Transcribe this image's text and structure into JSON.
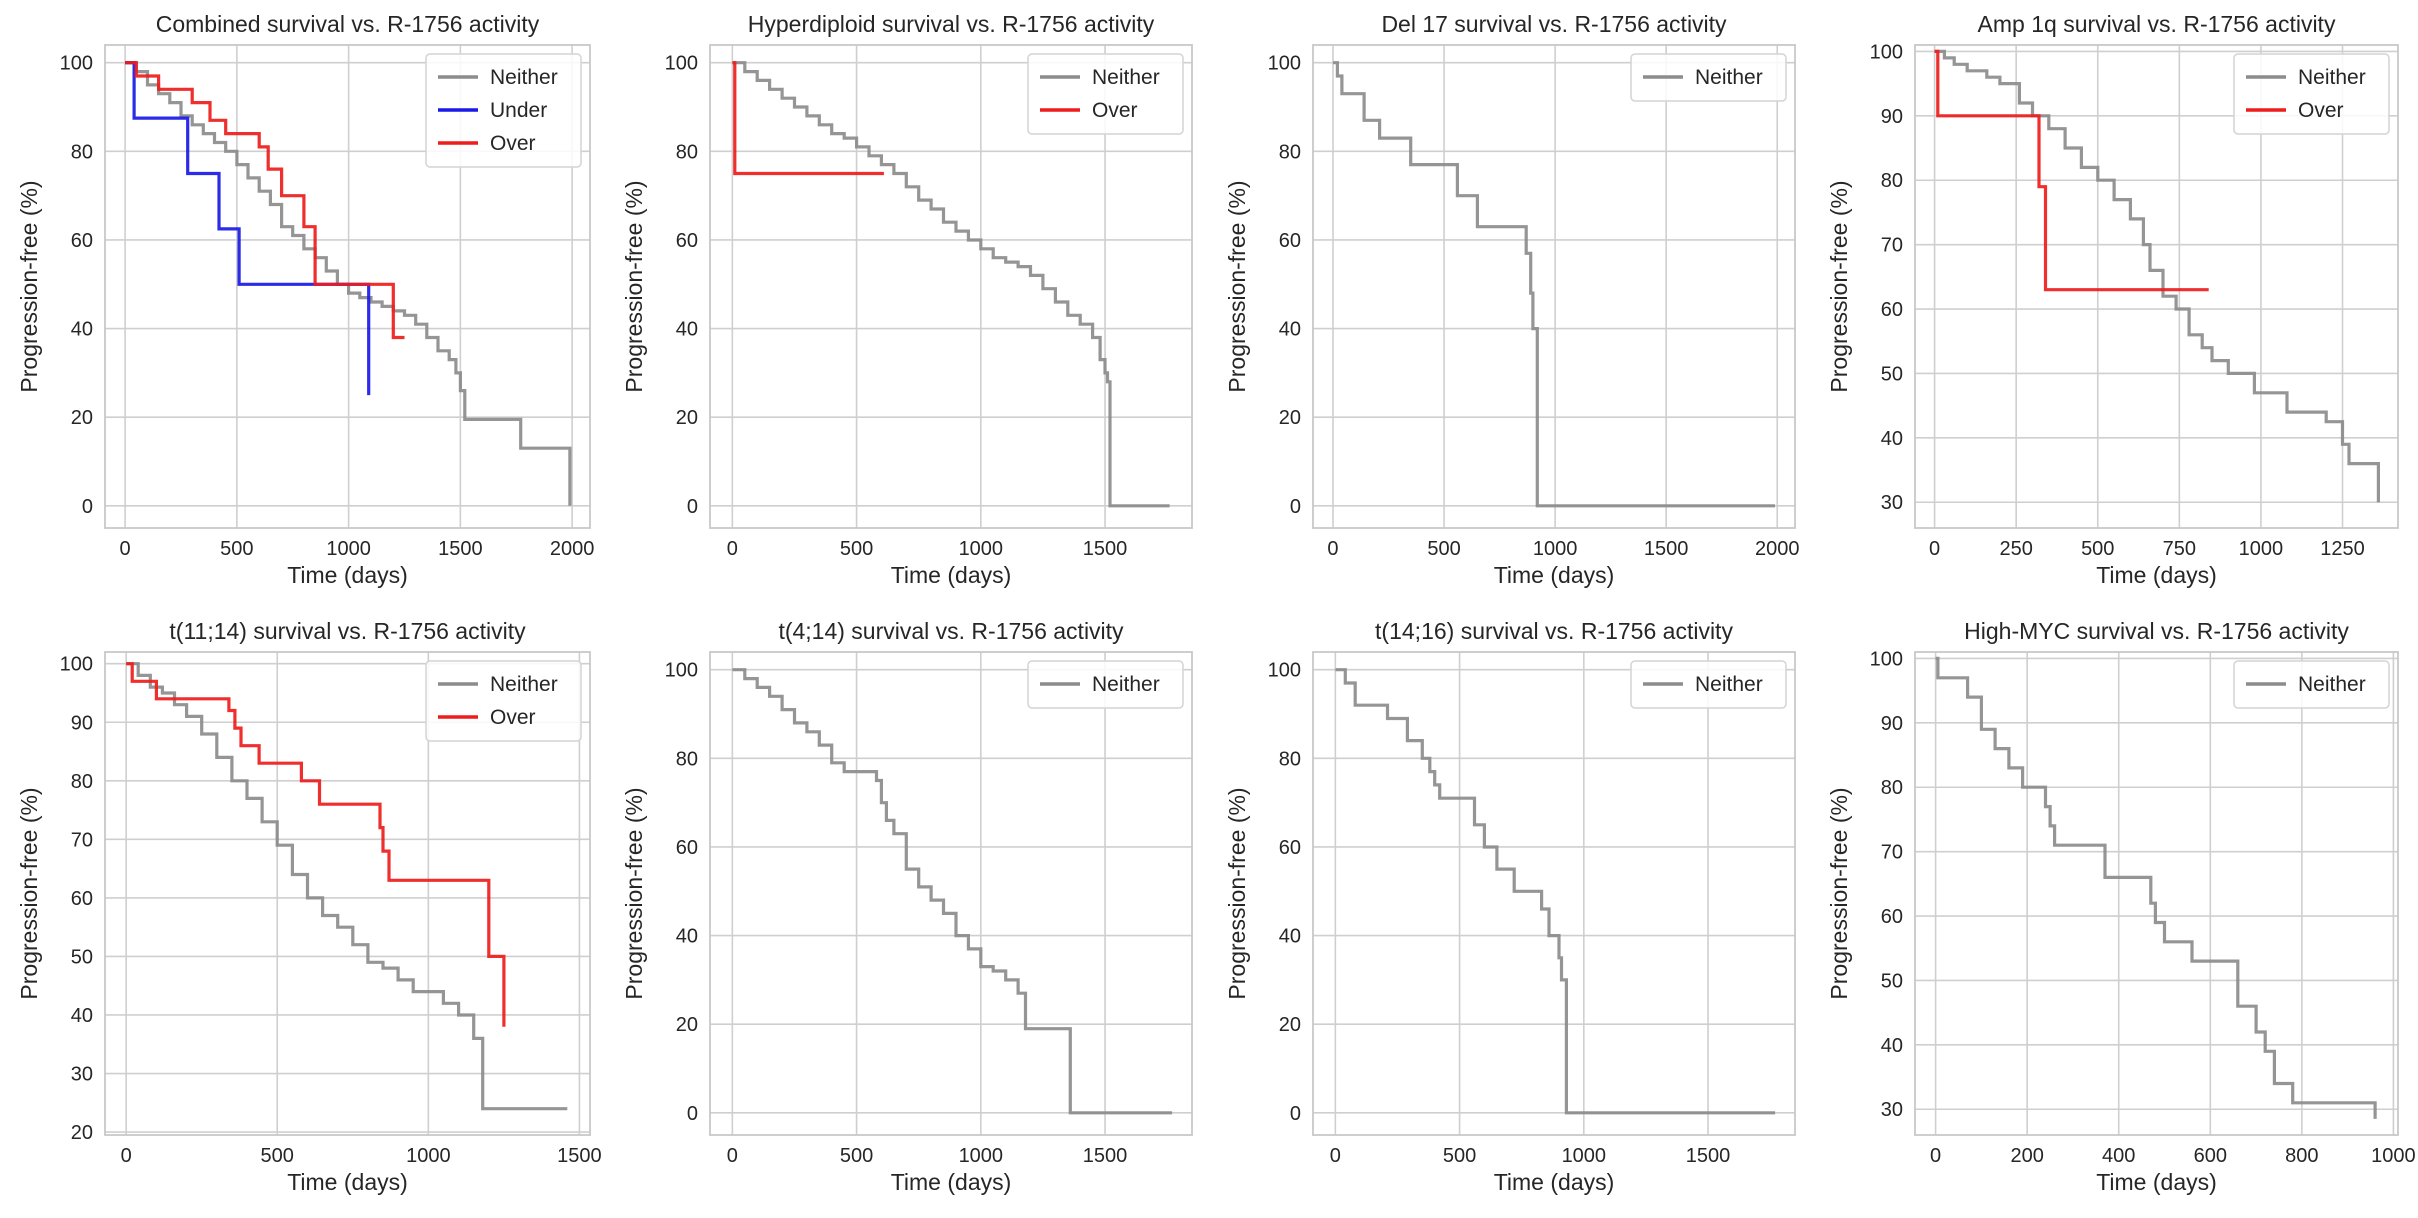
{
  "colors": {
    "neither": "#8c8c8c",
    "under": "#1a1ae6",
    "over": "#ee1c1c",
    "grid": "#cfcfcf",
    "frame": "#c8c8c8"
  },
  "chart_data": [
    {
      "type": "line",
      "title": "Combined survival vs. R-1756 activity",
      "xlabel": "Time (days)",
      "ylabel": "Progression-free (%)",
      "xlim": [
        -90,
        2080
      ],
      "ylim": [
        -5,
        104
      ],
      "xticks": [
        0,
        500,
        1000,
        1500,
        2000
      ],
      "yticks": [
        0,
        20,
        40,
        60,
        80,
        100
      ],
      "series": [
        {
          "name": "Neither",
          "color": "#8c8c8c",
          "x": [
            0,
            50,
            100,
            150,
            200,
            250,
            300,
            350,
            400,
            450,
            500,
            550,
            600,
            650,
            700,
            750,
            800,
            850,
            900,
            950,
            1000,
            1050,
            1100,
            1150,
            1200,
            1250,
            1300,
            1350,
            1400,
            1450,
            1480,
            1500,
            1510,
            1520,
            1760,
            1770,
            1990
          ],
          "y": [
            100,
            98,
            95,
            93,
            91,
            88,
            86,
            84,
            82,
            80,
            77,
            74,
            71,
            68,
            63,
            61,
            58,
            56,
            53,
            50,
            48,
            47,
            46,
            45,
            44,
            43,
            41,
            38,
            35,
            33,
            30,
            26,
            26,
            19.5,
            19.5,
            13,
            0
          ]
        },
        {
          "name": "Under",
          "color": "#1a1ae6",
          "x": [
            0,
            40,
            280,
            420,
            510,
            1090
          ],
          "y": [
            100,
            87.5,
            75,
            62.5,
            50,
            25
          ]
        },
        {
          "name": "Over",
          "color": "#ee1c1c",
          "x": [
            0,
            50,
            150,
            300,
            380,
            450,
            600,
            640,
            700,
            800,
            850,
            1200,
            1250
          ],
          "y": [
            100,
            97,
            94,
            91,
            87,
            84,
            81,
            76,
            70,
            63,
            50,
            38,
            38
          ]
        }
      ]
    },
    {
      "type": "line",
      "title": "Hyperdiploid survival vs. R-1756 activity",
      "xlabel": "Time (days)",
      "ylabel": "Progression-free (%)",
      "xlim": [
        -90,
        1850
      ],
      "ylim": [
        -5,
        104
      ],
      "xticks": [
        0,
        500,
        1000,
        1500
      ],
      "yticks": [
        0,
        20,
        40,
        60,
        80,
        100
      ],
      "series": [
        {
          "name": "Neither",
          "color": "#8c8c8c",
          "x": [
            0,
            50,
            100,
            150,
            200,
            250,
            300,
            350,
            400,
            450,
            500,
            550,
            600,
            650,
            700,
            750,
            800,
            850,
            900,
            950,
            1000,
            1050,
            1100,
            1150,
            1200,
            1250,
            1300,
            1350,
            1400,
            1450,
            1480,
            1500,
            1510,
            1520,
            1760
          ],
          "y": [
            100,
            98,
            96,
            94,
            92,
            90,
            88,
            86,
            84,
            83,
            81,
            79,
            77,
            75,
            72,
            69,
            67,
            64,
            62,
            60,
            58,
            56,
            55,
            54,
            52,
            49,
            46,
            43,
            41,
            38,
            33,
            30,
            28,
            0,
            0
          ]
        },
        {
          "name": "Over",
          "color": "#ee1c1c",
          "x": [
            0,
            10,
            610
          ],
          "y": [
            100,
            75,
            75
          ]
        }
      ]
    },
    {
      "type": "line",
      "title": "Del 17 survival vs. R-1756 activity",
      "xlabel": "Time (days)",
      "ylabel": "Progression-free (%)",
      "xlim": [
        -90,
        2080
      ],
      "ylim": [
        -5,
        104
      ],
      "xticks": [
        0,
        500,
        1000,
        1500,
        2000
      ],
      "yticks": [
        0,
        20,
        40,
        60,
        80,
        100
      ],
      "series": [
        {
          "name": "Neither",
          "color": "#8c8c8c",
          "x": [
            0,
            20,
            40,
            140,
            210,
            350,
            560,
            650,
            870,
            890,
            900,
            920,
            1990
          ],
          "y": [
            100,
            97,
            93,
            87,
            83,
            77,
            70,
            63,
            57,
            48,
            40,
            0,
            0
          ]
        }
      ]
    },
    {
      "type": "line",
      "title": "Amp 1q survival vs. R-1756 activity",
      "xlabel": "Time (days)",
      "ylabel": "Progression-free (%)",
      "xlim": [
        -60,
        1420
      ],
      "ylim": [
        26,
        101
      ],
      "xticks": [
        0,
        250,
        500,
        750,
        1000,
        1250
      ],
      "yticks": [
        30,
        40,
        50,
        60,
        70,
        80,
        90,
        100
      ],
      "series": [
        {
          "name": "Neither",
          "color": "#8c8c8c",
          "x": [
            0,
            30,
            60,
            100,
            160,
            200,
            260,
            300,
            350,
            400,
            450,
            500,
            550,
            600,
            640,
            660,
            700,
            740,
            780,
            820,
            850,
            900,
            980,
            1080,
            1200,
            1250,
            1270,
            1360
          ],
          "y": [
            100,
            99,
            98,
            97,
            96,
            95,
            92,
            90,
            88,
            85,
            82,
            80,
            77,
            74,
            70,
            66,
            62,
            60,
            56,
            54,
            52,
            50,
            47,
            44,
            42.5,
            39,
            36,
            30
          ]
        },
        {
          "name": "Over",
          "color": "#ee1c1c",
          "x": [
            0,
            10,
            320,
            340,
            840
          ],
          "y": [
            100,
            90,
            79,
            63,
            63
          ]
        }
      ]
    },
    {
      "type": "line",
      "title": "t(11;14) survival vs. R-1756 activity",
      "xlabel": "Time (days)",
      "ylabel": "Progression-free (%)",
      "xlim": [
        -70,
        1535
      ],
      "ylim": [
        19.5,
        102
      ],
      "xticks": [
        0,
        500,
        1000,
        1500
      ],
      "yticks": [
        20,
        30,
        40,
        50,
        60,
        70,
        80,
        90,
        100
      ],
      "series": [
        {
          "name": "Neither",
          "color": "#8c8c8c",
          "x": [
            0,
            40,
            80,
            120,
            160,
            200,
            250,
            300,
            350,
            400,
            450,
            500,
            550,
            600,
            650,
            700,
            750,
            800,
            850,
            900,
            950,
            1000,
            1050,
            1100,
            1150,
            1180,
            1220,
            1460
          ],
          "y": [
            100,
            98,
            96,
            95,
            93,
            91,
            88,
            84,
            80,
            77,
            73,
            69,
            64,
            60,
            57,
            55,
            52,
            49,
            48,
            46,
            44,
            44,
            42,
            40,
            36,
            24,
            24,
            24
          ]
        },
        {
          "name": "Over",
          "color": "#ee1c1c",
          "x": [
            0,
            20,
            100,
            340,
            360,
            380,
            440,
            580,
            640,
            840,
            850,
            870,
            1200,
            1250
          ],
          "y": [
            100,
            97,
            94,
            92,
            89,
            86,
            83,
            80,
            76,
            72,
            68,
            63,
            50,
            38
          ]
        }
      ]
    },
    {
      "type": "line",
      "title": "t(4;14) survival vs. R-1756 activity",
      "xlabel": "Time (days)",
      "ylabel": "Progression-free (%)",
      "xlim": [
        -90,
        1850
      ],
      "ylim": [
        -5,
        104
      ],
      "xticks": [
        0,
        500,
        1000,
        1500
      ],
      "yticks": [
        0,
        20,
        40,
        60,
        80,
        100
      ],
      "series": [
        {
          "name": "Neither",
          "color": "#8c8c8c",
          "x": [
            0,
            50,
            100,
            150,
            200,
            250,
            300,
            350,
            400,
            450,
            500,
            550,
            580,
            600,
            620,
            650,
            700,
            750,
            800,
            850,
            900,
            950,
            1000,
            1050,
            1100,
            1150,
            1180,
            1350,
            1360,
            1770
          ],
          "y": [
            100,
            98,
            96,
            94,
            91,
            88,
            86,
            83,
            79,
            77,
            77,
            77,
            75,
            70,
            66,
            63,
            55,
            51,
            48,
            45,
            40,
            37,
            33,
            32,
            30,
            27,
            19,
            19,
            0,
            0
          ]
        }
      ]
    },
    {
      "type": "line",
      "title": "t(14;16) survival vs. R-1756 activity",
      "xlabel": "Time (days)",
      "ylabel": "Progression-free (%)",
      "xlim": [
        -90,
        1850
      ],
      "ylim": [
        -5,
        104
      ],
      "xticks": [
        0,
        500,
        1000,
        1500
      ],
      "yticks": [
        0,
        20,
        40,
        60,
        80,
        100
      ],
      "series": [
        {
          "name": "Neither",
          "color": "#8c8c8c",
          "x": [
            0,
            40,
            80,
            210,
            290,
            350,
            380,
            400,
            420,
            500,
            560,
            600,
            650,
            720,
            830,
            860,
            900,
            910,
            930,
            1770
          ],
          "y": [
            100,
            97,
            92,
            89,
            84,
            80,
            77,
            74,
            71,
            71,
            65,
            60,
            55,
            50,
            46,
            40,
            35,
            30,
            0,
            0
          ]
        }
      ]
    },
    {
      "type": "line",
      "title": "High-MYC survival vs. R-1756 activity",
      "xlabel": "Time (days)",
      "ylabel": "Progression-free (%)",
      "xlim": [
        -45,
        1010
      ],
      "ylim": [
        26,
        101
      ],
      "xticks": [
        0,
        200,
        400,
        600,
        800,
        1000
      ],
      "yticks": [
        30,
        40,
        50,
        60,
        70,
        80,
        90,
        100
      ],
      "series": [
        {
          "name": "Neither",
          "color": "#8c8c8c",
          "x": [
            0,
            5,
            70,
            100,
            130,
            160,
            190,
            240,
            250,
            260,
            370,
            470,
            480,
            500,
            560,
            660,
            700,
            720,
            740,
            780,
            960
          ],
          "y": [
            100,
            97,
            94,
            89,
            86,
            83,
            80,
            77,
            74,
            71,
            66,
            62,
            59,
            56,
            53,
            46,
            42,
            39,
            34,
            31,
            28.5
          ]
        }
      ]
    }
  ]
}
